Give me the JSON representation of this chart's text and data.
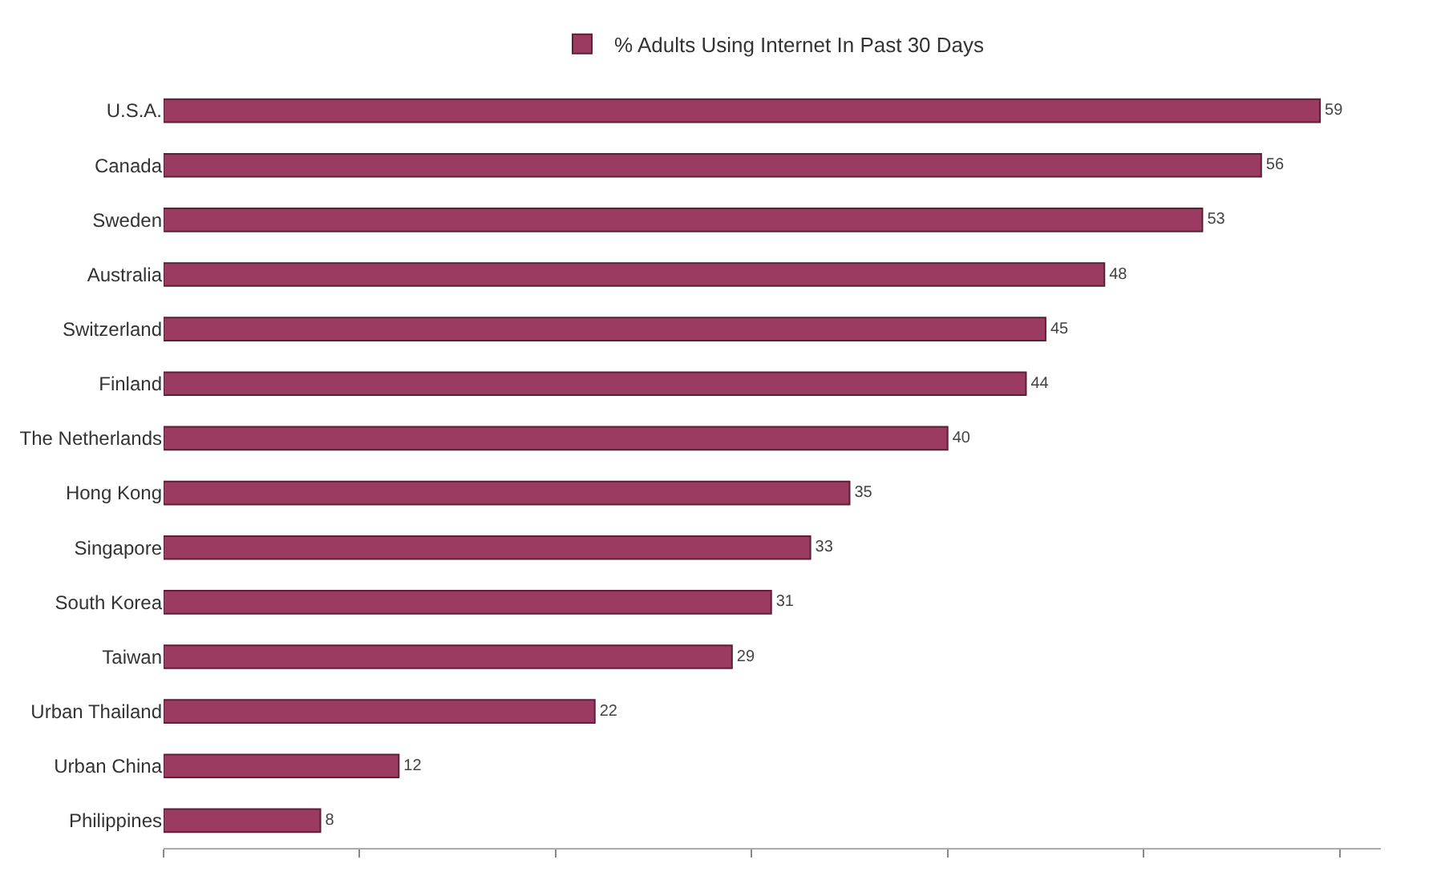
{
  "chart_data": {
    "type": "bar",
    "orientation": "horizontal",
    "categories": [
      "U.S.A.",
      "Canada",
      "Sweden",
      "Australia",
      "Switzerland",
      "Finland",
      "The Netherlands",
      "Hong Kong",
      "Singapore",
      "South Korea",
      "Taiwan",
      "Urban Thailand",
      "Urban China",
      "Philippines"
    ],
    "series": [
      {
        "name": "% Adults Using Internet In Past 30 Days",
        "color": "#9b3b62",
        "values": [
          59,
          56,
          53,
          48,
          45,
          44,
          40,
          35,
          33,
          31,
          29,
          22,
          12,
          8
        ]
      }
    ],
    "data_labels": true,
    "legend": "top",
    "tick_labels": "y",
    "grid": false
  }
}
